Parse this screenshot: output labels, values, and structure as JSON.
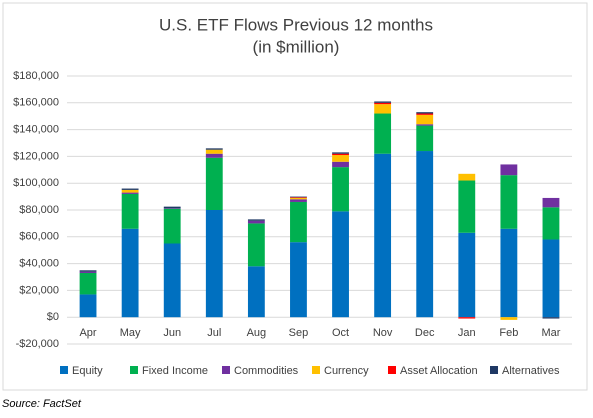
{
  "chart_data": {
    "type": "stacked-bar",
    "title": "U.S. ETF Flows Previous 12 months",
    "subtitle": "(in $million)",
    "source": "Source: FactSet",
    "categories": [
      "Apr",
      "May",
      "Jun",
      "Jul",
      "Aug",
      "Sep",
      "Oct",
      "Nov",
      "Dec",
      "Jan",
      "Feb",
      "Mar"
    ],
    "series": [
      {
        "name": "Equity",
        "color": "#0070c0",
        "values": [
          17000,
          66000,
          55000,
          80000,
          38000,
          56000,
          79000,
          122000,
          124000,
          63000,
          66000,
          58000
        ]
      },
      {
        "name": "Fixed Income",
        "color": "#00b050",
        "values": [
          16000,
          26000,
          26000,
          39000,
          32000,
          30000,
          33000,
          30000,
          19000,
          39000,
          40000,
          24000
        ]
      },
      {
        "name": "Commodities",
        "color": "#7030a0",
        "values": [
          1000,
          1000,
          500,
          3000,
          2000,
          2000,
          4000,
          0,
          1000,
          0,
          8000,
          7000
        ]
      },
      {
        "name": "Currency",
        "color": "#ffc000",
        "values": [
          0,
          2000,
          0,
          3000,
          0,
          1000,
          5000,
          7000,
          7000,
          5000,
          -2000,
          0
        ]
      },
      {
        "name": "Asset Allocation",
        "color": "#ff0000",
        "values": [
          0,
          0,
          0,
          0,
          0,
          500,
          1000,
          1000,
          1000,
          -1000,
          0,
          0
        ]
      },
      {
        "name": "Alternatives",
        "color": "#1f3864",
        "values": [
          1000,
          1000,
          1000,
          1000,
          1000,
          500,
          1000,
          1000,
          1000,
          0,
          0,
          -1000
        ]
      }
    ],
    "ylim": [
      -20000,
      180000
    ],
    "yticks": [
      {
        "value": -20000,
        "label": "-$20,000"
      },
      {
        "value": 0,
        "label": "$0"
      },
      {
        "value": 20000,
        "label": "$20,000"
      },
      {
        "value": 40000,
        "label": "$40,000"
      },
      {
        "value": 60000,
        "label": "$60,000"
      },
      {
        "value": 80000,
        "label": "$80,000"
      },
      {
        "value": 100000,
        "label": "$100,000"
      },
      {
        "value": 120000,
        "label": "$120,000"
      },
      {
        "value": 140000,
        "label": "$140,000"
      },
      {
        "value": 160000,
        "label": "$160,000"
      },
      {
        "value": 180000,
        "label": "$180,000"
      }
    ],
    "grid": true
  }
}
